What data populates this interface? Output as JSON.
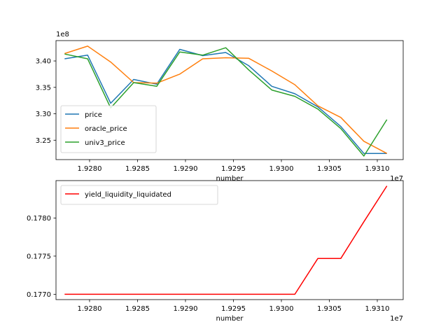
{
  "chart_data": [
    {
      "type": "line",
      "xlabel": "number",
      "ylabel": "",
      "x_offset_label": "1e7",
      "y_offset_label": "1e8",
      "xlim": [
        19276500,
        19312700
      ],
      "ylim": [
        3.2133,
        3.4385
      ],
      "xticks": [
        19280000,
        19285000,
        19290000,
        19295000,
        19300000,
        19305000,
        19310000
      ],
      "xtick_labels": [
        "1.9280",
        "1.9285",
        "1.9290",
        "1.9295",
        "1.9300",
        "1.9305",
        "1.9310"
      ],
      "yticks": [
        3.25,
        3.3,
        3.35,
        3.4
      ],
      "ytick_labels": [
        "3.25",
        "3.30",
        "3.35",
        "3.40"
      ],
      "legend_position": "lower-left",
      "x": [
        19277400,
        19279800,
        19282200,
        19284600,
        19287000,
        19289400,
        19291800,
        19294200,
        19296600,
        19299000,
        19301400,
        19303800,
        19306200,
        19308600,
        19311000
      ],
      "series": [
        {
          "name": "price",
          "color": "#1f77b4",
          "values": [
            3.404,
            3.411,
            3.32,
            3.365,
            3.356,
            3.422,
            3.41,
            3.416,
            3.391,
            3.352,
            3.338,
            3.313,
            3.276,
            3.225,
            3.225
          ]
        },
        {
          "name": "oracle_price",
          "color": "#ff7f0e",
          "values": [
            3.414,
            3.428,
            3.398,
            3.359,
            3.358,
            3.375,
            3.404,
            3.406,
            3.405,
            3.381,
            3.355,
            3.315,
            3.293,
            3.248,
            3.225
          ]
        },
        {
          "name": "univ3_price",
          "color": "#2ca02c",
          "values": [
            3.413,
            3.404,
            3.311,
            3.359,
            3.352,
            3.417,
            3.411,
            3.425,
            3.383,
            3.345,
            3.333,
            3.309,
            3.272,
            3.22,
            3.289
          ]
        }
      ]
    },
    {
      "type": "line",
      "xlabel": "number",
      "ylabel": "",
      "x_offset_label": "1e7",
      "xlim": [
        19276500,
        19312700
      ],
      "ylim": [
        0.17693,
        0.17849
      ],
      "xticks": [
        19280000,
        19285000,
        19290000,
        19295000,
        19300000,
        19305000,
        19310000
      ],
      "xtick_labels": [
        "1.9280",
        "1.9285",
        "1.9290",
        "1.9295",
        "1.9300",
        "1.9305",
        "1.9310"
      ],
      "yticks": [
        0.177,
        0.1775,
        0.178
      ],
      "ytick_labels": [
        "0.1770",
        "0.1775",
        "0.1780"
      ],
      "legend_position": "upper-left",
      "x": [
        19277400,
        19279800,
        19282200,
        19284600,
        19287000,
        19289400,
        19291800,
        19294200,
        19296600,
        19299000,
        19301400,
        19303800,
        19306200,
        19308600,
        19311000
      ],
      "series": [
        {
          "name": "yield_liquidity_liquidated",
          "color": "#ff0000",
          "values": [
            0.177,
            0.177,
            0.177,
            0.177,
            0.177,
            0.177,
            0.177,
            0.177,
            0.177,
            0.177,
            0.177,
            0.17747,
            0.17747,
            0.17795,
            0.17842
          ]
        }
      ]
    }
  ]
}
